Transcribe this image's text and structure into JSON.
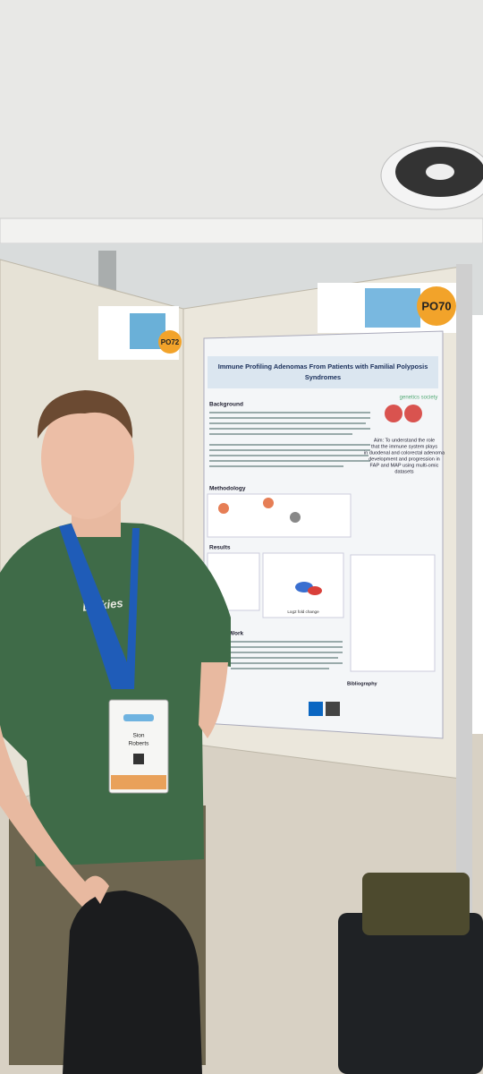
{
  "poster": {
    "board_number": "PO70",
    "neighbor_board_number": "PO72",
    "title_line1": "Immune Profiling Adenomas From Patients with Familial Polyposis",
    "title_line2": "Syndromes",
    "society": "genetics society",
    "sections": [
      "Background",
      "Methodology",
      "Results",
      "Future Work",
      "Bibliography"
    ],
    "aim": [
      "Aim: To understand the role",
      "that the immune system plays",
      "in duodenal and colorectal adenoma",
      "development and progression in",
      "FAP and MAP using multi-omic",
      "datasets"
    ],
    "plot_axis": "Log2 fold change"
  },
  "person": {
    "shirt_text": "Dickies",
    "badge_name": [
      "Sion",
      "Roberts"
    ]
  }
}
